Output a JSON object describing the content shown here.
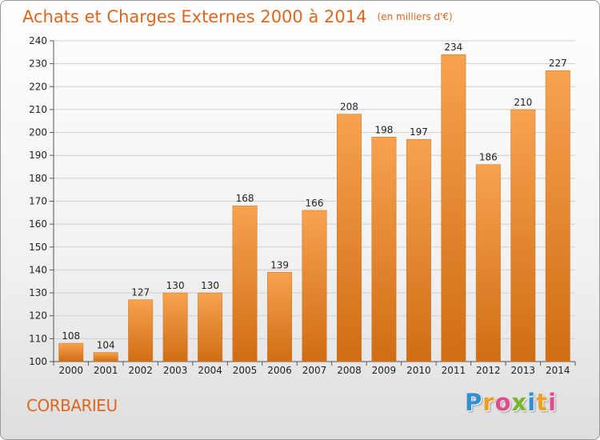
{
  "header": {
    "title": "Achats et Charges Externes 2000 à 2014",
    "unit": "(en milliers d'€)"
  },
  "footer": {
    "city": "CORBARIEU",
    "brand_letters": [
      "P",
      "r",
      "o",
      "x",
      "i",
      "t",
      "i"
    ],
    "brand_colors": [
      "#2d8fd6",
      "#f0a020",
      "#e04d8b",
      "#76b82a",
      "#2d8fd6",
      "#f0a020",
      "#e04d8b"
    ]
  },
  "chart_data": {
    "type": "bar",
    "categories": [
      "2000",
      "2001",
      "2002",
      "2003",
      "2004",
      "2005",
      "2006",
      "2007",
      "2008",
      "2009",
      "2010",
      "2011",
      "2012",
      "2013",
      "2014"
    ],
    "values": [
      108,
      104,
      127,
      130,
      130,
      168,
      139,
      166,
      208,
      198,
      197,
      234,
      186,
      210,
      227
    ],
    "value_labels": [
      "108",
      "104",
      "127",
      "130",
      "130",
      "168",
      "139",
      "166",
      "208",
      "198",
      "197",
      "234",
      "186",
      "210",
      "227"
    ],
    "ylim": [
      100,
      240
    ],
    "yticks": [
      "100",
      "110",
      "120",
      "130",
      "140",
      "150",
      "160",
      "170",
      "180",
      "190",
      "200",
      "210",
      "220",
      "230",
      "240"
    ],
    "grid": true,
    "bar_color_top": "#f7a24f",
    "bar_color_bottom": "#d06d14"
  }
}
